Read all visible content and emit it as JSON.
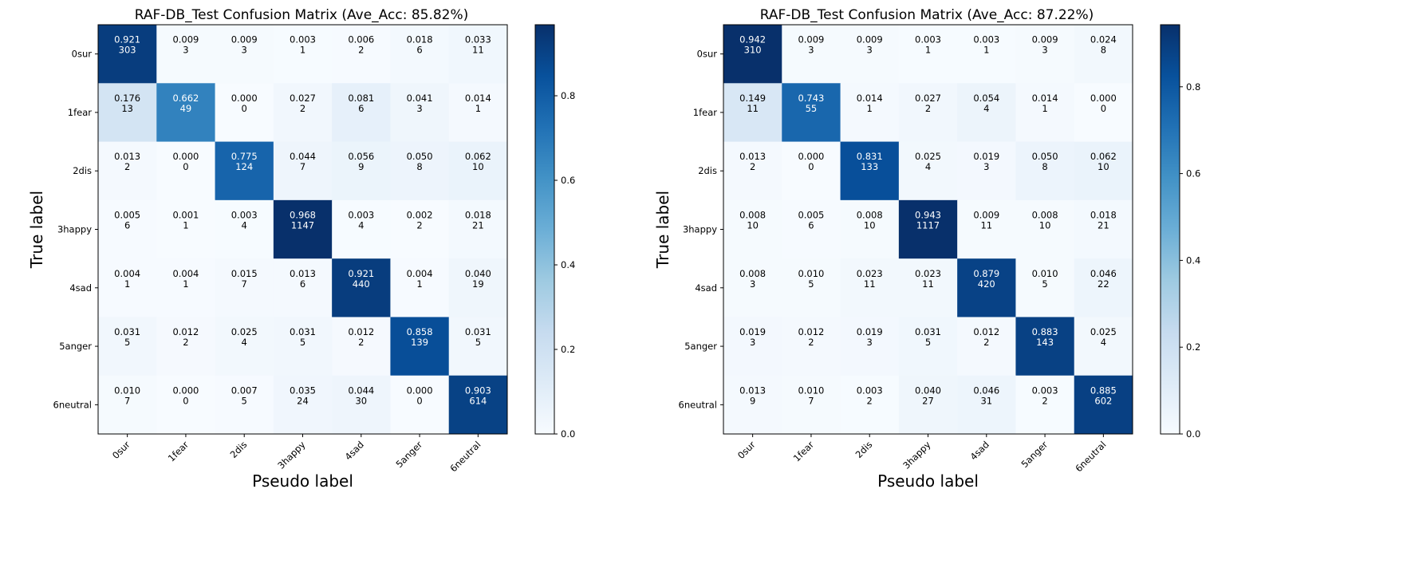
{
  "chart_data": [
    {
      "type": "heatmap",
      "title": "RAF-DB_Test Confusion Matrix (Ave_Acc: 85.82%)",
      "xlabel": "Pseudo label",
      "ylabel": "True label",
      "x_categories": [
        "0sur",
        "1fear",
        "2dis",
        "3happy",
        "4sad",
        "5anger",
        "6neutral"
      ],
      "y_categories": [
        "0sur",
        "1fear",
        "2dis",
        "3happy",
        "4sad",
        "5anger",
        "6neutral"
      ],
      "values": [
        [
          0.921,
          0.009,
          0.009,
          0.003,
          0.006,
          0.018,
          0.033
        ],
        [
          0.176,
          0.662,
          0.0,
          0.027,
          0.081,
          0.041,
          0.014
        ],
        [
          0.013,
          0.0,
          0.775,
          0.044,
          0.056,
          0.05,
          0.062
        ],
        [
          0.005,
          0.001,
          0.003,
          0.968,
          0.003,
          0.002,
          0.018
        ],
        [
          0.004,
          0.004,
          0.015,
          0.013,
          0.921,
          0.004,
          0.04
        ],
        [
          0.031,
          0.012,
          0.025,
          0.031,
          0.012,
          0.858,
          0.031
        ],
        [
          0.01,
          0.0,
          0.007,
          0.035,
          0.044,
          0.0,
          0.903
        ]
      ],
      "counts": [
        [
          303,
          3,
          3,
          1,
          2,
          6,
          11
        ],
        [
          13,
          49,
          0,
          2,
          6,
          3,
          1
        ],
        [
          2,
          0,
          124,
          7,
          9,
          8,
          10
        ],
        [
          6,
          1,
          4,
          1147,
          4,
          2,
          21
        ],
        [
          1,
          1,
          7,
          6,
          440,
          1,
          19
        ],
        [
          5,
          2,
          4,
          5,
          2,
          139,
          5
        ],
        [
          7,
          0,
          5,
          24,
          30,
          0,
          614
        ]
      ],
      "colorbar": {
        "min": 0.0,
        "max": 0.968,
        "ticks": [
          0.0,
          0.2,
          0.4,
          0.6,
          0.8
        ],
        "tick_labels": [
          "0.0",
          "0.2",
          "0.4",
          "0.6",
          "0.8"
        ]
      },
      "colormap": [
        "#f7fbff",
        "#deebf7",
        "#c6dbef",
        "#9ecae1",
        "#6baed6",
        "#4292c6",
        "#2171b5",
        "#08519c",
        "#08306b"
      ]
    },
    {
      "type": "heatmap",
      "title": "RAF-DB_Test Confusion Matrix (Ave_Acc: 87.22%)",
      "xlabel": "Pseudo label",
      "ylabel": "True label",
      "x_categories": [
        "0sur",
        "1fear",
        "2dis",
        "3happy",
        "4sad",
        "5anger",
        "6neutral"
      ],
      "y_categories": [
        "0sur",
        "1fear",
        "2dis",
        "3happy",
        "4sad",
        "5anger",
        "6neutral"
      ],
      "values": [
        [
          0.942,
          0.009,
          0.009,
          0.003,
          0.003,
          0.009,
          0.024
        ],
        [
          0.149,
          0.743,
          0.014,
          0.027,
          0.054,
          0.014,
          0.0
        ],
        [
          0.013,
          0.0,
          0.831,
          0.025,
          0.019,
          0.05,
          0.062
        ],
        [
          0.008,
          0.005,
          0.008,
          0.943,
          0.009,
          0.008,
          0.018
        ],
        [
          0.008,
          0.01,
          0.023,
          0.023,
          0.879,
          0.01,
          0.046
        ],
        [
          0.019,
          0.012,
          0.019,
          0.031,
          0.012,
          0.883,
          0.025
        ],
        [
          0.013,
          0.01,
          0.003,
          0.04,
          0.046,
          0.003,
          0.885
        ]
      ],
      "counts": [
        [
          310,
          3,
          3,
          1,
          1,
          3,
          8
        ],
        [
          11,
          55,
          1,
          2,
          4,
          1,
          0
        ],
        [
          2,
          0,
          133,
          4,
          3,
          8,
          10
        ],
        [
          10,
          6,
          10,
          1117,
          11,
          10,
          21
        ],
        [
          3,
          5,
          11,
          11,
          420,
          5,
          22
        ],
        [
          3,
          2,
          3,
          5,
          2,
          143,
          4
        ],
        [
          9,
          7,
          2,
          27,
          31,
          2,
          602
        ]
      ],
      "colorbar": {
        "min": 0.0,
        "max": 0.943,
        "ticks": [
          0.0,
          0.2,
          0.4,
          0.6,
          0.8
        ],
        "tick_labels": [
          "0.0",
          "0.2",
          "0.4",
          "0.6",
          "0.8"
        ]
      },
      "colormap": [
        "#f7fbff",
        "#deebf7",
        "#c6dbef",
        "#9ecae1",
        "#6baed6",
        "#4292c6",
        "#2171b5",
        "#08519c",
        "#08306b"
      ]
    }
  ]
}
